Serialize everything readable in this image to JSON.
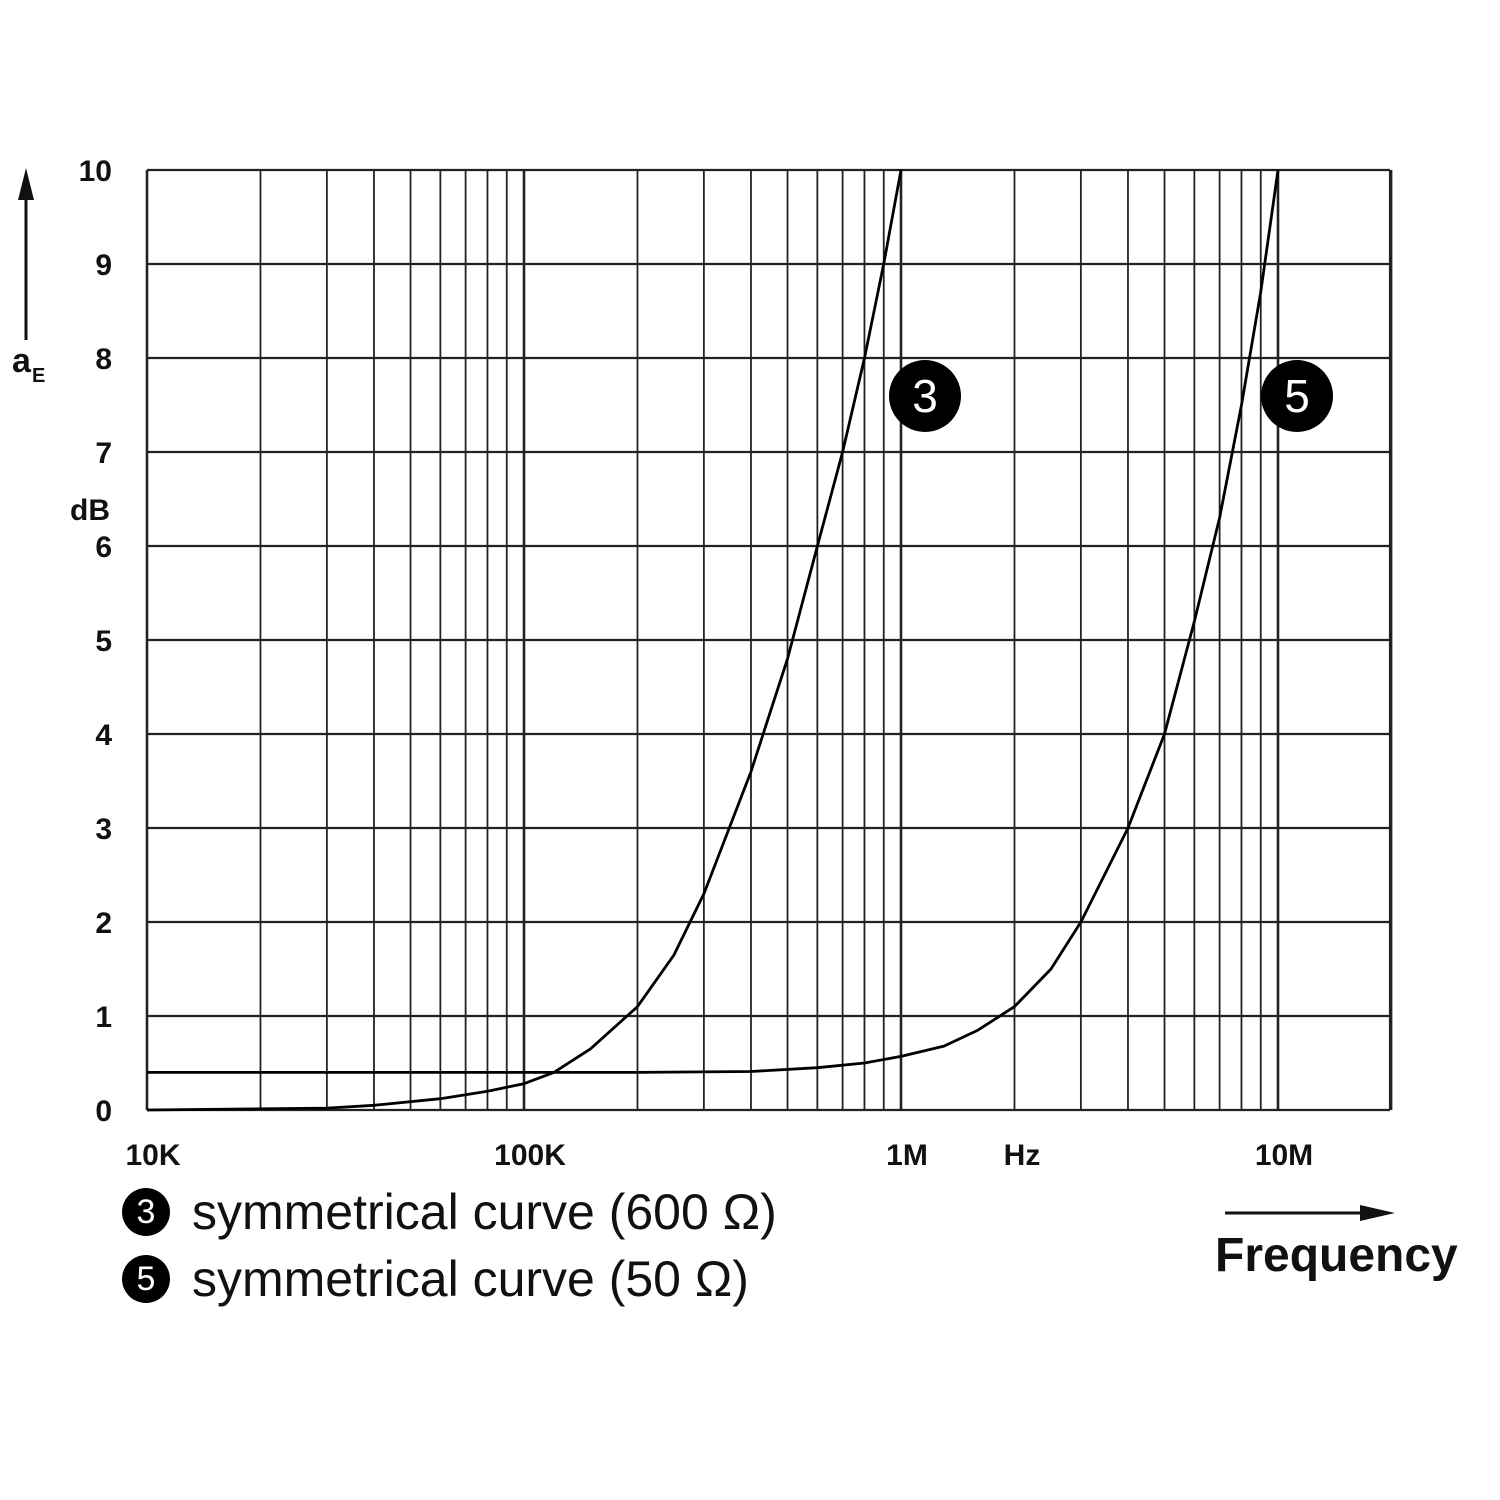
{
  "chart_data": {
    "type": "line",
    "x_scale": "log",
    "xlim": [
      10000,
      20000000
    ],
    "ylim": [
      0,
      10
    ],
    "grid": true,
    "ylabel": "a",
    "ylabel_sub": "E",
    "yunit": "dB",
    "xunit": "Hz",
    "xlabel": "Frequency",
    "x_tick_labels": [
      {
        "value": 10000,
        "label": "10K"
      },
      {
        "value": 100000,
        "label": "100K"
      },
      {
        "value": 1000000,
        "label": "1M"
      },
      {
        "value": 10000000,
        "label": "10M"
      }
    ],
    "y_ticks": [
      0,
      1,
      2,
      3,
      4,
      5,
      6,
      7,
      8,
      9,
      10
    ],
    "series": [
      {
        "name": "3",
        "description": "symmetrical curve (600 Ω)",
        "x": [
          10000,
          30000,
          40000,
          60000,
          80000,
          100000,
          120000,
          150000,
          200000,
          250000,
          300000,
          400000,
          500000,
          600000,
          700000,
          800000,
          900000,
          1000000
        ],
        "y": [
          0.0,
          0.02,
          0.05,
          0.12,
          0.2,
          0.28,
          0.4,
          0.65,
          1.1,
          1.65,
          2.3,
          3.6,
          4.8,
          6.0,
          7.0,
          8.0,
          9.0,
          10.0
        ]
      },
      {
        "name": "5",
        "description": "symmetrical curve (50 Ω)",
        "x": [
          10000,
          100000,
          200000,
          400000,
          600000,
          800000,
          1000000,
          1300000,
          1600000,
          2000000,
          2500000,
          3000000,
          4000000,
          5000000,
          6000000,
          7000000,
          8000000,
          9000000,
          10000000
        ],
        "y": [
          0.4,
          0.4,
          0.4,
          0.41,
          0.45,
          0.5,
          0.57,
          0.68,
          0.85,
          1.1,
          1.5,
          2.0,
          3.0,
          4.0,
          5.2,
          6.3,
          7.5,
          8.7,
          10.0
        ]
      }
    ],
    "legend": [
      {
        "marker": "3",
        "text": "symmetrical curve (600 Ω)"
      },
      {
        "marker": "5",
        "text": "symmetrical curve (50 Ω)"
      }
    ],
    "colors": {
      "line": "#000000",
      "grid": "#222222",
      "marker_bg": "#000000",
      "marker_fg": "#ffffff"
    }
  }
}
